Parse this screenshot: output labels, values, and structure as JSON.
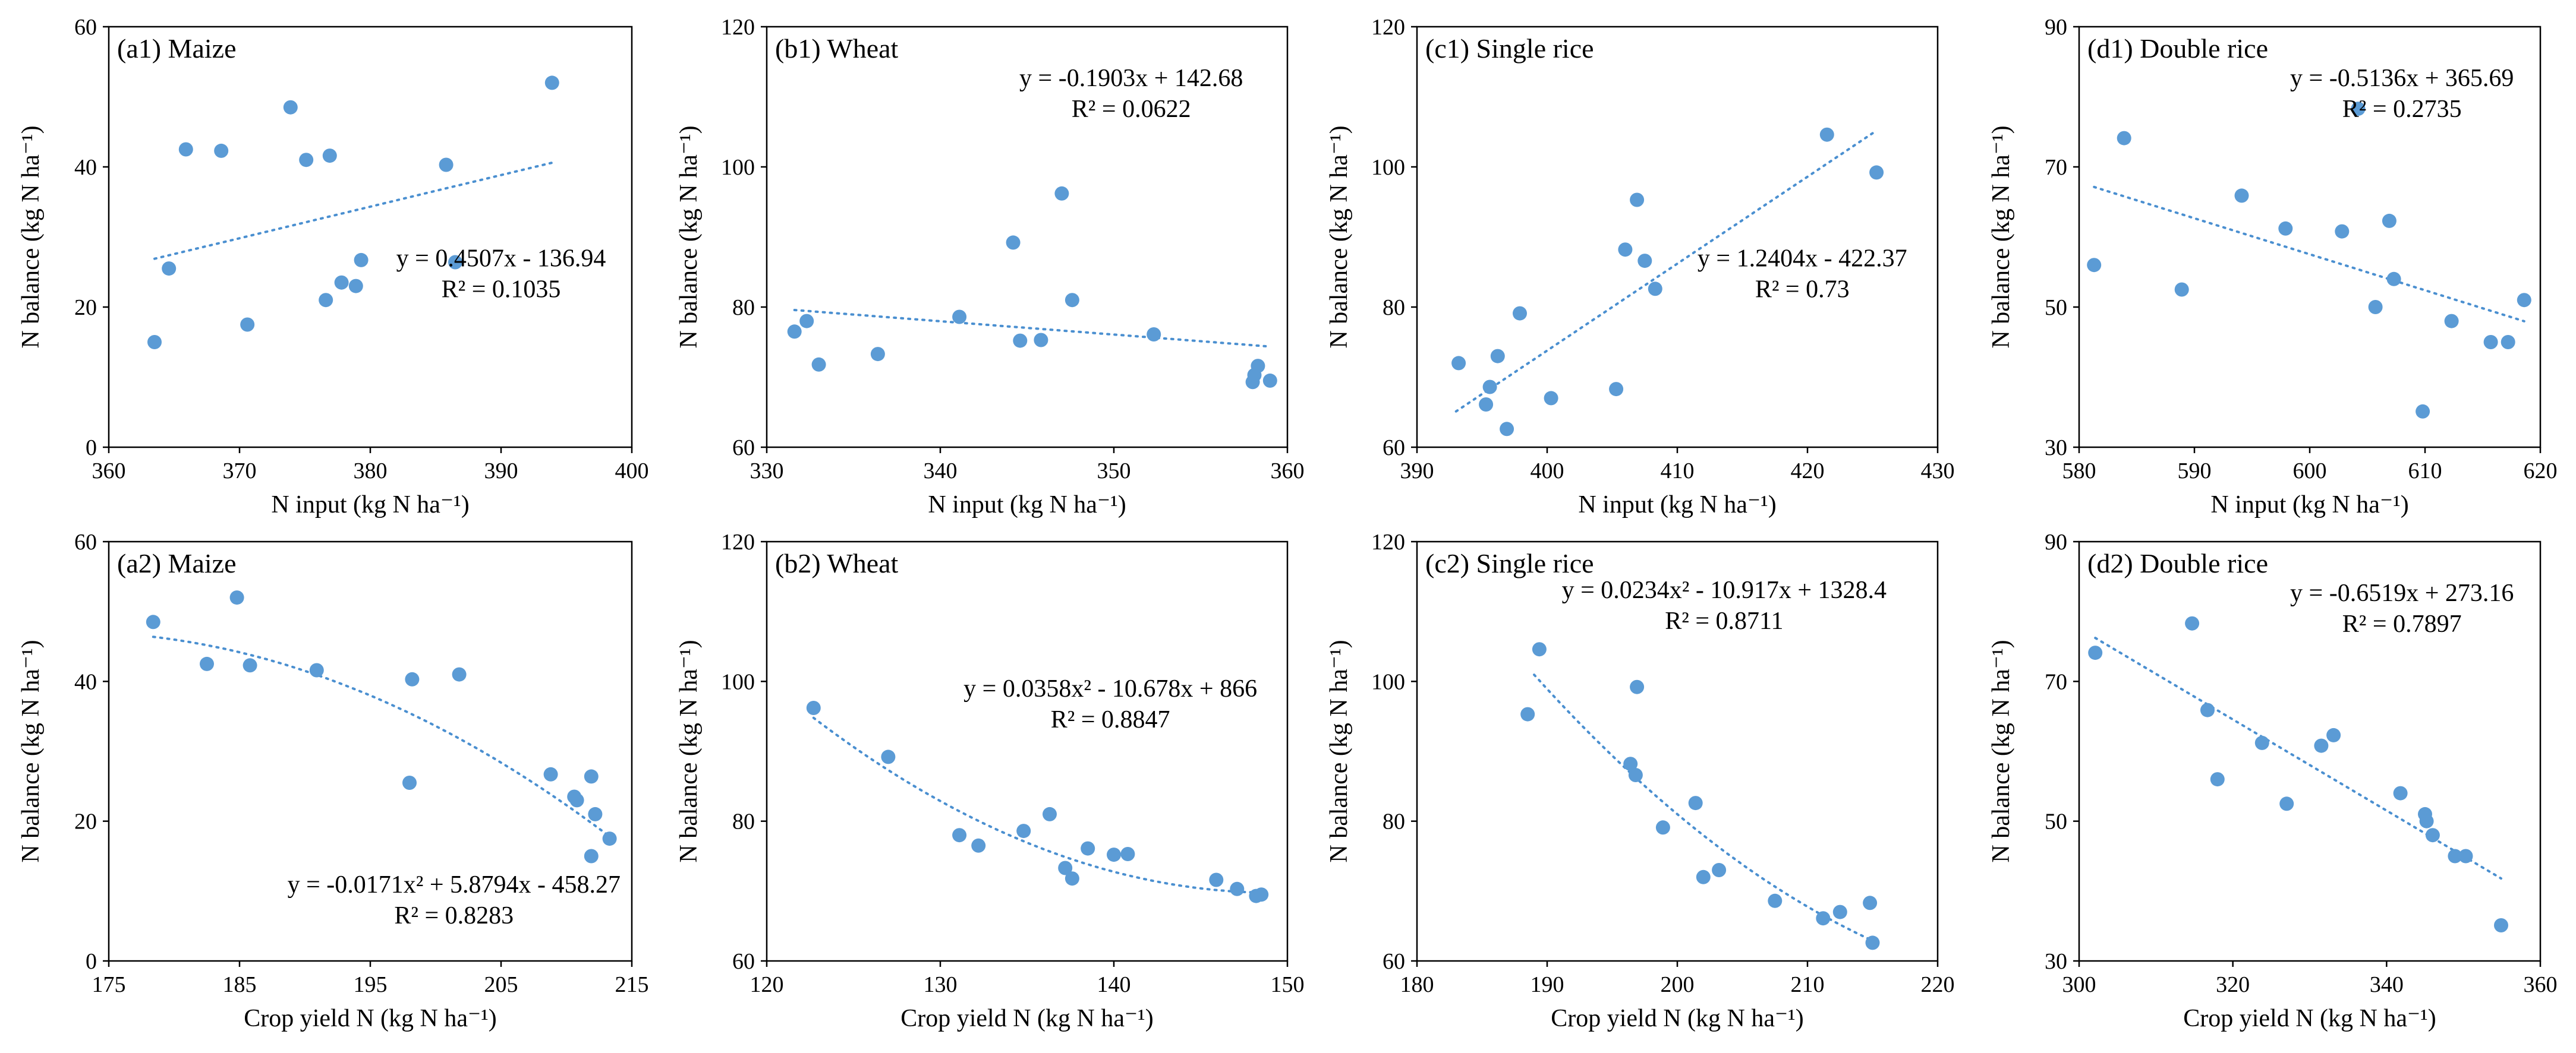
{
  "colors": {
    "point": "#5B9BD5",
    "trend": "#4A8FD0",
    "axis": "#000000"
  },
  "chart_data": [
    {
      "type": "scatter",
      "id": "a1",
      "title": "(a1) Maize",
      "xlabel": "N input (kg N ha⁻¹)",
      "ylabel": "N balance (kg N ha⁻¹)",
      "xlim": [
        360,
        400
      ],
      "ylim": [
        0,
        60
      ],
      "xticks": [
        360,
        370,
        380,
        390,
        400
      ],
      "yticks": [
        0,
        20,
        40,
        60
      ],
      "x": [
        363.5,
        364.6,
        365.9,
        368.6,
        370.6,
        373.9,
        375.1,
        376.6,
        376.9,
        377.8,
        378.9,
        379.3,
        385.8,
        386.5,
        393.9
      ],
      "y": [
        15.0,
        25.5,
        42.5,
        42.3,
        17.5,
        48.5,
        41.0,
        21.0,
        41.6,
        23.5,
        23.0,
        26.7,
        40.3,
        26.4,
        52.0
      ],
      "trend": {
        "kind": "poly",
        "coef": [
          -136.94,
          0.4507
        ],
        "xrange": [
          363.5,
          393.9
        ]
      },
      "equation": "y = 0.4507x - 136.94",
      "r2": "R² = 0.1035",
      "eq_anchor": "right"
    },
    {
      "type": "scatter",
      "id": "b1",
      "title": "(b1) Wheat",
      "xlabel": "N input (kg N ha⁻¹)",
      "ylabel": "N balance (kg N ha⁻¹)",
      "xlim": [
        330,
        360
      ],
      "ylim": [
        60,
        120
      ],
      "xticks": [
        330,
        340,
        350,
        360
      ],
      "yticks": [
        60,
        80,
        100,
        120
      ],
      "x": [
        331.6,
        332.3,
        333.0,
        336.4,
        341.1,
        344.2,
        344.6,
        345.8,
        347.0,
        347.6,
        352.3,
        358.0,
        358.1,
        358.3,
        359.0
      ],
      "y": [
        76.5,
        78.0,
        71.8,
        73.3,
        78.6,
        89.2,
        75.2,
        75.3,
        96.2,
        81.0,
        76.1,
        69.3,
        70.3,
        71.6,
        69.5
      ],
      "trend": {
        "kind": "poly",
        "coef": [
          142.68,
          -0.1903
        ],
        "xrange": [
          331.6,
          359.0
        ]
      },
      "equation": "y = -0.1903x + 142.68",
      "r2": "R² = 0.0622",
      "eq_anchor": "top"
    },
    {
      "type": "scatter",
      "id": "c1",
      "title": "(c1) Single rice",
      "xlabel": "N input (kg N ha⁻¹)",
      "ylabel": "N balance (kg N ha⁻¹)",
      "xlim": [
        390,
        430
      ],
      "ylim": [
        60,
        120
      ],
      "xticks": [
        390,
        400,
        410,
        420,
        430
      ],
      "yticks": [
        60,
        80,
        100,
        120
      ],
      "x": [
        393.2,
        395.3,
        395.6,
        396.2,
        396.9,
        397.9,
        400.3,
        405.3,
        406.0,
        406.9,
        407.5,
        408.3,
        421.5,
        425.3
      ],
      "y": [
        72.0,
        66.1,
        68.6,
        73.0,
        62.6,
        79.1,
        67.0,
        68.3,
        88.2,
        95.3,
        86.6,
        82.6,
        104.6,
        99.2
      ],
      "trend": {
        "kind": "poly",
        "coef": [
          -422.37,
          1.2404
        ],
        "xrange": [
          393.0,
          425.3
        ]
      },
      "equation": "y = 1.2404x - 422.37",
      "r2": "R² = 0.73",
      "eq_anchor": "right"
    },
    {
      "type": "scatter",
      "id": "d1",
      "title": "(d1) Double rice",
      "xlabel": "N input (kg N ha⁻¹)",
      "ylabel": "N balance (kg N ha⁻¹)",
      "xlim": [
        580,
        620
      ],
      "ylim": [
        30,
        90
      ],
      "xticks": [
        580,
        590,
        600,
        610,
        620
      ],
      "yticks": [
        30,
        50,
        70,
        90
      ],
      "x": [
        581.3,
        583.9,
        588.9,
        594.1,
        597.9,
        602.8,
        604.2,
        605.7,
        606.9,
        607.3,
        609.8,
        612.3,
        615.7,
        617.2,
        618.6
      ],
      "y": [
        56.0,
        74.1,
        52.5,
        65.9,
        61.2,
        60.8,
        78.3,
        50.0,
        62.3,
        54.0,
        35.1,
        48.0,
        45.0,
        45.0,
        51.0
      ],
      "trend": {
        "kind": "poly",
        "coef": [
          365.69,
          -0.5136
        ],
        "xrange": [
          581.3,
          618.6
        ]
      },
      "equation": "y = -0.5136x + 365.69",
      "r2": "R² = 0.2735",
      "eq_anchor": "top"
    },
    {
      "type": "scatter",
      "id": "a2",
      "title": "(a2) Maize",
      "xlabel": "Crop yield N (kg N ha⁻¹)",
      "ylabel": "N balance (kg N ha⁻¹)",
      "xlim": [
        175,
        215
      ],
      "ylim": [
        0,
        60
      ],
      "xticks": [
        175,
        185,
        195,
        205,
        215
      ],
      "yticks": [
        0,
        20,
        40,
        60
      ],
      "x": [
        178.4,
        182.5,
        184.8,
        185.8,
        190.9,
        198.0,
        198.2,
        201.8,
        208.8,
        210.6,
        210.8,
        211.9,
        211.9,
        212.2,
        213.3
      ],
      "y": [
        48.5,
        42.5,
        52.0,
        42.3,
        41.6,
        25.5,
        40.3,
        41.0,
        26.7,
        23.5,
        23.0,
        15.0,
        26.4,
        21.0,
        17.5
      ],
      "trend": {
        "kind": "quad",
        "coef": [
          -458.27,
          5.8794,
          -0.0171
        ],
        "xrange": [
          178.4,
          213.3
        ]
      },
      "equation": "y = -0.0171x² + 5.8794x - 458.27",
      "r2": "R² = 0.8283",
      "eq_anchor": "bottom"
    },
    {
      "type": "scatter",
      "id": "b2",
      "title": "(b2) Wheat",
      "xlabel": "Crop yield N (kg N ha⁻¹)",
      "ylabel": "N balance (kg N ha⁻¹)",
      "xlim": [
        120,
        150
      ],
      "ylim": [
        60,
        120
      ],
      "xticks": [
        120,
        130,
        140,
        150
      ],
      "yticks": [
        60,
        80,
        100,
        120
      ],
      "x": [
        122.7,
        127.0,
        131.1,
        132.2,
        134.8,
        136.3,
        137.2,
        137.6,
        138.5,
        140.0,
        140.8,
        145.9,
        147.1,
        148.2,
        148.5
      ],
      "y": [
        96.2,
        89.2,
        78.0,
        76.5,
        78.6,
        81.0,
        73.3,
        71.8,
        76.1,
        75.2,
        75.3,
        71.6,
        70.3,
        69.3,
        69.5
      ],
      "trend": {
        "kind": "quad",
        "coef": [
          866,
          -10.678,
          0.0358
        ],
        "xrange": [
          122.7,
          148.5
        ]
      },
      "equation": "y = 0.0358x² - 10.678x + 866",
      "r2": "R² = 0.8847",
      "eq_anchor": "right"
    },
    {
      "type": "scatter",
      "id": "c2",
      "title": "(c2) Single rice",
      "xlabel": "Crop yield N (kg N ha⁻¹)",
      "ylabel": "N balance (kg N ha⁻¹)",
      "xlim": [
        180,
        220
      ],
      "ylim": [
        60,
        120
      ],
      "xticks": [
        180,
        190,
        200,
        210,
        220
      ],
      "yticks": [
        60,
        80,
        100,
        120
      ],
      "x": [
        188.5,
        189.4,
        196.4,
        196.8,
        196.9,
        198.9,
        201.4,
        202.0,
        203.2,
        207.5,
        211.2,
        212.5,
        214.8,
        215.0
      ],
      "y": [
        95.3,
        104.6,
        88.2,
        86.6,
        99.2,
        79.1,
        82.6,
        72.0,
        73.0,
        68.6,
        66.1,
        67.0,
        68.3,
        62.6
      ],
      "trend": {
        "kind": "quad",
        "coef": [
          1328.4,
          -10.917,
          0.0234
        ],
        "xrange": [
          189.0,
          215.2
        ]
      },
      "equation": "y = 0.0234x² - 10.917x + 1328.4",
      "r2": "R² = 0.8711",
      "eq_anchor": "top"
    },
    {
      "type": "scatter",
      "id": "d2",
      "title": "(d2) Double rice",
      "xlabel": "Crop yield N (kg N ha⁻¹)",
      "ylabel": "N balance (kg N ha⁻¹)",
      "xlim": [
        300,
        360
      ],
      "ylim": [
        30,
        90
      ],
      "xticks": [
        300,
        320,
        340,
        360
      ],
      "yticks": [
        30,
        50,
        70,
        90
      ],
      "x": [
        302.1,
        314.7,
        316.7,
        318.0,
        323.8,
        327.0,
        331.5,
        333.1,
        341.8,
        345.0,
        345.2,
        346.0,
        348.9,
        350.3,
        354.9
      ],
      "y": [
        74.1,
        78.3,
        65.9,
        56.0,
        61.2,
        52.5,
        60.8,
        62.3,
        54.0,
        51.0,
        50.0,
        48.0,
        45.0,
        45.0,
        35.1
      ],
      "trend": {
        "kind": "poly",
        "coef": [
          273.16,
          -0.6519
        ],
        "xrange": [
          302.1,
          354.9
        ]
      },
      "equation": "y = -0.6519x + 273.16",
      "r2": "R² = 0.7897",
      "eq_anchor": "top"
    }
  ]
}
